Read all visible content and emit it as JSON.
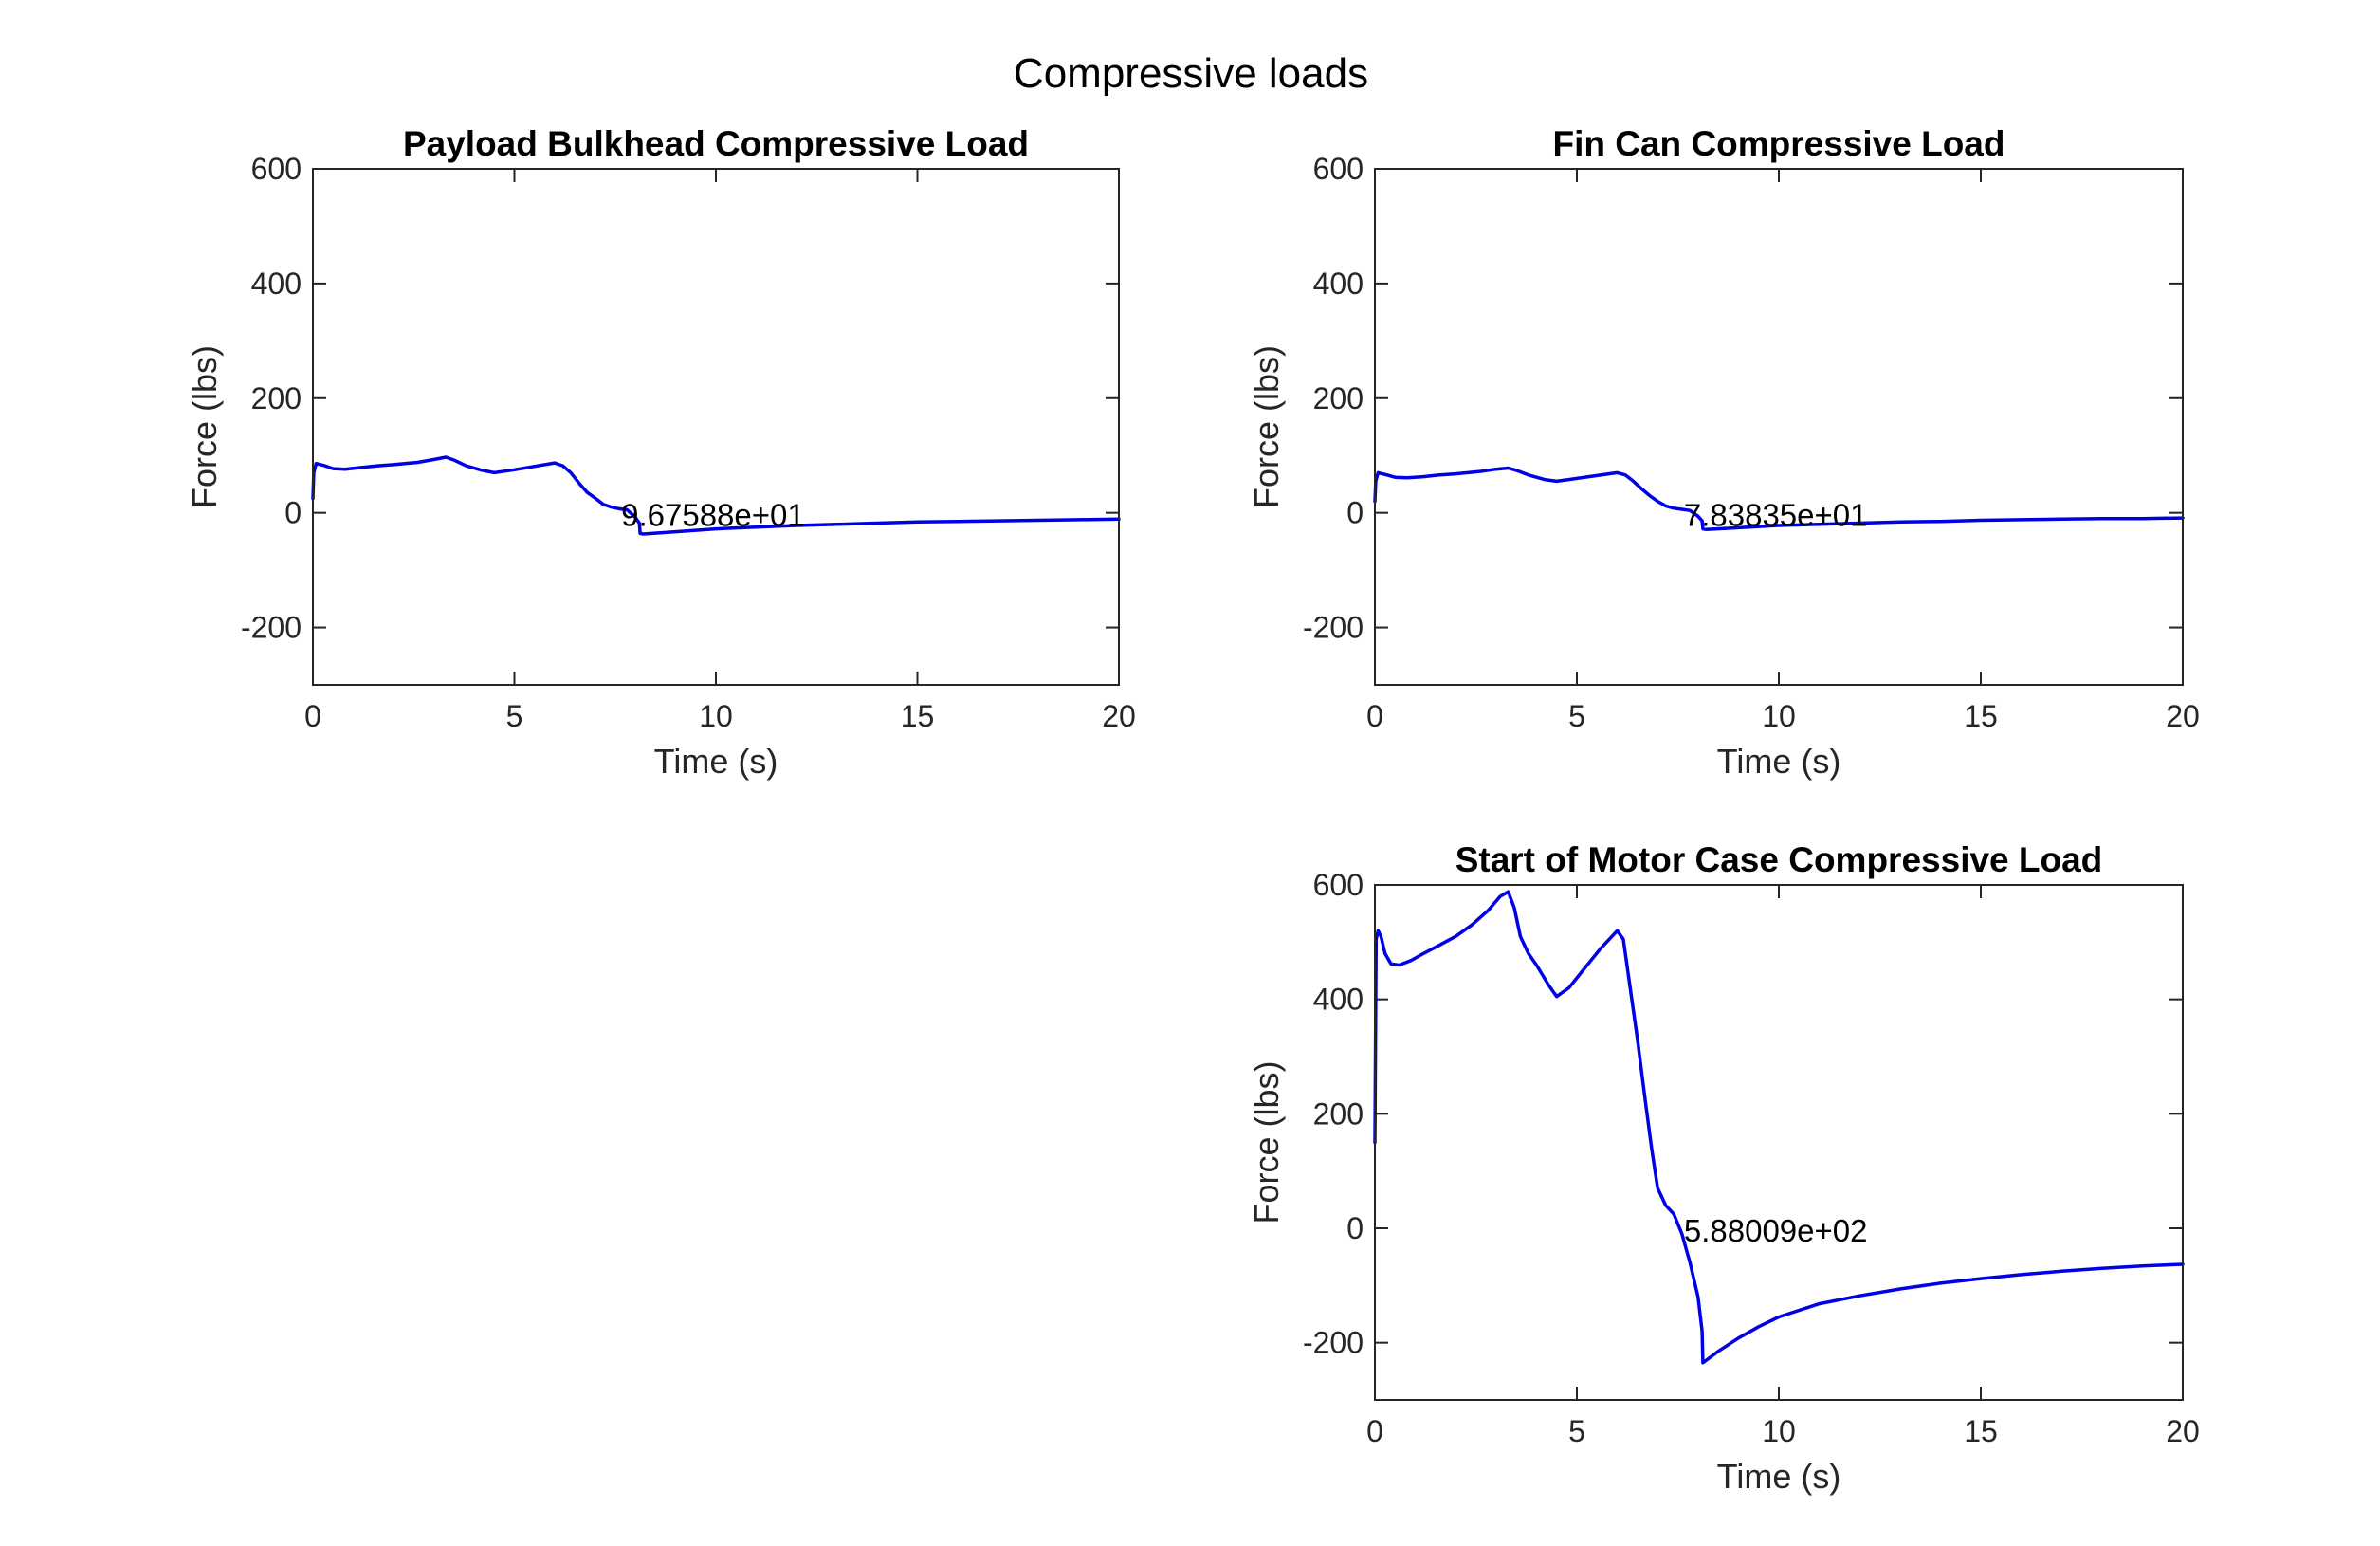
{
  "figure": {
    "supertitle": "Compressive loads"
  },
  "chart_data": [
    {
      "type": "line",
      "title": "Payload Bulkhead Compressive Load",
      "xlabel": "Time (s)",
      "ylabel": "Force (lbs)",
      "xlim": [
        0,
        20
      ],
      "ylim": [
        -300,
        600
      ],
      "xticks": [
        "0",
        "5",
        "10",
        "15",
        "20"
      ],
      "yticks": [
        "-200",
        "0",
        "200",
        "400",
        "600"
      ],
      "grid": false,
      "line_color": "#0000e6",
      "annotation": {
        "text": "9.67588e+01",
        "x": 7.65,
        "y": -3
      },
      "series": [
        {
          "x": [
            0,
            0.02,
            0.08,
            0.3,
            0.5,
            0.8,
            1.2,
            1.6,
            2.0,
            2.6,
            3.0,
            3.3,
            3.5,
            3.8,
            4.2,
            4.5,
            5.0,
            5.5,
            6.0,
            6.2,
            6.4,
            6.6,
            6.8,
            7.0,
            7.2,
            7.4,
            7.6,
            7.8,
            8.0,
            8.1,
            8.12,
            8.2,
            9.0,
            10,
            11,
            12,
            13,
            14,
            15,
            16,
            17,
            18,
            19,
            20
          ],
          "y": [
            25,
            70,
            86,
            82,
            77,
            76,
            79,
            82,
            84,
            88,
            93,
            97,
            92,
            82,
            74,
            70,
            75,
            81,
            87,
            82,
            70,
            52,
            36,
            26,
            15,
            10,
            7,
            5,
            -8,
            -18,
            -36,
            -37,
            -33,
            -28,
            -25,
            -22,
            -20,
            -18,
            -16,
            -15,
            -14,
            -13,
            -12,
            -11
          ]
        }
      ]
    },
    {
      "type": "line",
      "title": "Fin Can Compressive Load",
      "xlabel": "Time (s)",
      "ylabel": "Force (lbs)",
      "xlim": [
        0,
        20
      ],
      "ylim": [
        -300,
        600
      ],
      "xticks": [
        "0",
        "5",
        "10",
        "15",
        "20"
      ],
      "yticks": [
        "-200",
        "0",
        "200",
        "400",
        "600"
      ],
      "grid": false,
      "line_color": "#0000e6",
      "annotation": {
        "text": "7.83835e+01",
        "x": 7.65,
        "y": -3
      },
      "series": [
        {
          "x": [
            0,
            0.02,
            0.08,
            0.3,
            0.5,
            0.8,
            1.2,
            1.6,
            2.0,
            2.6,
            3.0,
            3.3,
            3.5,
            3.8,
            4.2,
            4.5,
            5.0,
            5.5,
            6.0,
            6.2,
            6.4,
            6.6,
            6.8,
            7.0,
            7.2,
            7.4,
            7.6,
            7.8,
            8.0,
            8.1,
            8.12,
            8.2,
            9.0,
            10,
            11,
            12,
            13,
            14,
            15,
            16,
            17,
            18,
            19,
            20
          ],
          "y": [
            20,
            55,
            70,
            66,
            62,
            61,
            63,
            66,
            68,
            72,
            76,
            78,
            74,
            66,
            58,
            55,
            60,
            65,
            70,
            66,
            55,
            42,
            30,
            20,
            12,
            8,
            6,
            4,
            -6,
            -14,
            -28,
            -29,
            -26,
            -22,
            -20,
            -18,
            -16,
            -15,
            -13,
            -12,
            -11,
            -10,
            -10,
            -9
          ]
        }
      ]
    },
    {
      "type": "line",
      "title": "Start of Motor Case Compressive Load",
      "xlabel": "Time (s)",
      "ylabel": "Force (lbs)",
      "xlim": [
        0,
        20
      ],
      "ylim": [
        -300,
        600
      ],
      "xticks": [
        "0",
        "5",
        "10",
        "15",
        "20"
      ],
      "yticks": [
        "-200",
        "0",
        "200",
        "400",
        "600"
      ],
      "grid": false,
      "line_color": "#0000e6",
      "annotation": {
        "text": "5.88009e+02",
        "x": 7.65,
        "y": -3
      },
      "series": [
        {
          "x": [
            0,
            0.03,
            0.08,
            0.15,
            0.25,
            0.4,
            0.6,
            0.9,
            1.2,
            1.6,
            2.0,
            2.4,
            2.8,
            3.1,
            3.3,
            3.45,
            3.6,
            3.8,
            4.0,
            4.3,
            4.5,
            4.8,
            5.2,
            5.6,
            6.0,
            6.15,
            6.3,
            6.5,
            6.7,
            6.85,
            7.0,
            7.2,
            7.4,
            7.6,
            7.8,
            8.0,
            8.1,
            8.12,
            8.25,
            8.5,
            9.0,
            9.5,
            10,
            11,
            12,
            13,
            14,
            15,
            16,
            17,
            18,
            19,
            20
          ],
          "y": [
            150,
            505,
            520,
            510,
            480,
            462,
            460,
            468,
            480,
            495,
            510,
            530,
            555,
            580,
            588,
            560,
            510,
            480,
            460,
            425,
            405,
            420,
            455,
            490,
            520,
            505,
            430,
            330,
            220,
            140,
            70,
            40,
            25,
            -10,
            -60,
            -120,
            -180,
            -235,
            -228,
            -215,
            -192,
            -172,
            -155,
            -132,
            -118,
            -106,
            -96,
            -88,
            -81,
            -75,
            -70,
            -66,
            -63
          ]
        }
      ]
    }
  ]
}
